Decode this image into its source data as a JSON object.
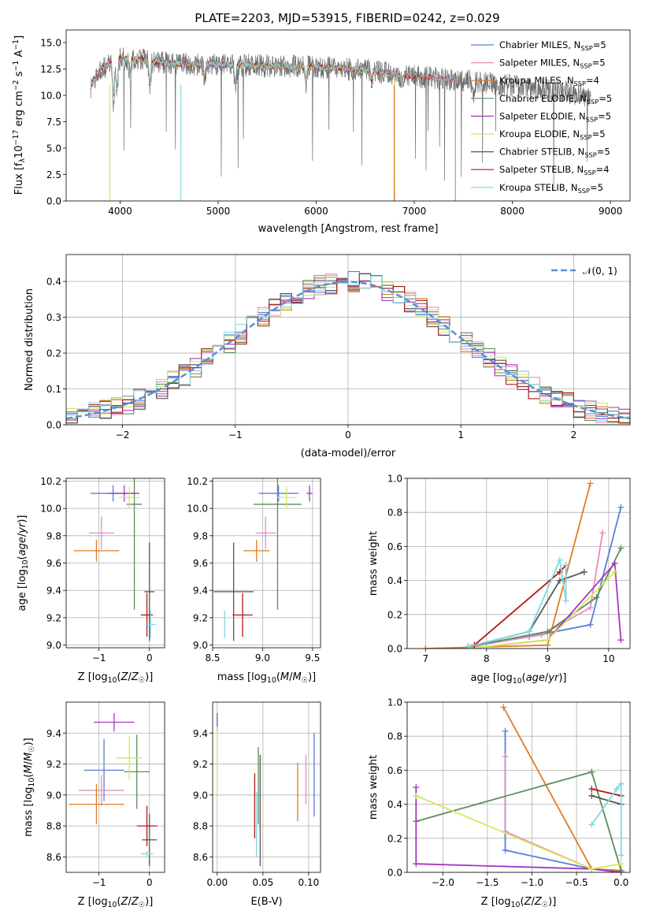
{
  "colors": {
    "chabrier_miles": "#5a7fd6",
    "salpeter_miles": "#e58cc0",
    "kroupa_miles": "#e07b21",
    "chabrier_elodie": "#5e8a5e",
    "salpeter_elodie": "#a438c0",
    "kroupa_elodie": "#d2e85a",
    "chabrier_stelib": "#555555",
    "salpeter_stelib": "#b01818",
    "kroupa_stelib": "#7fd8e0",
    "normal_curve": "#5a8fd6"
  },
  "chart_data": [
    {
      "id": "spectrum",
      "type": "line",
      "title": "PLATE=2203, MJD=53915, FIBERID=0242, z=0.029",
      "xlabel": "wavelength [Angstrom, rest frame]",
      "ylabel_parts": [
        "Flux [f",
        "λ",
        "10",
        "−17",
        " erg cm",
        "−2",
        " s",
        "−1",
        " A",
        "−1",
        "]"
      ],
      "xlim": [
        3450,
        9200
      ],
      "ylim": [
        0,
        16.2
      ],
      "xticks": [
        4000,
        5000,
        6000,
        7000,
        8000,
        9000
      ],
      "yticks": [
        0.0,
        2.5,
        5.0,
        7.5,
        10.0,
        12.5,
        15.0
      ],
      "grid": false,
      "legend_position": "top-right",
      "series": [
        {
          "name": "Chabrier MILES",
          "ssp": "5",
          "color_key": "chabrier_miles",
          "range": [
            3700,
            7420
          ]
        },
        {
          "name": "Salpeter MILES",
          "ssp": "5",
          "color_key": "salpeter_miles",
          "range": [
            3700,
            7420
          ]
        },
        {
          "name": "Kroupa MILES",
          "ssp": "4",
          "color_key": "kroupa_miles",
          "range": [
            3700,
            7420
          ]
        },
        {
          "name": "Chabrier ELODIE",
          "ssp": "5",
          "color_key": "chabrier_elodie",
          "range": [
            3900,
            6800
          ]
        },
        {
          "name": "Salpeter ELODIE",
          "ssp": "5",
          "color_key": "salpeter_elodie",
          "range": [
            3900,
            6800
          ]
        },
        {
          "name": "Kroupa ELODIE",
          "ssp": "5",
          "color_key": "kroupa_elodie",
          "range": [
            3900,
            6800
          ]
        },
        {
          "name": "Chabrier STELIB",
          "ssp": "5",
          "color_key": "chabrier_stelib",
          "range": [
            3700,
            8800
          ]
        },
        {
          "name": "Salpeter STELIB",
          "ssp": "4",
          "color_key": "salpeter_stelib",
          "range": [
            3700,
            7420
          ]
        },
        {
          "name": "Kroupa STELIB",
          "ssp": "5",
          "color_key": "kroupa_stelib",
          "range": [
            3700,
            7420
          ]
        }
      ],
      "continuum_points": [
        [
          3700,
          10.8
        ],
        [
          3800,
          12.5
        ],
        [
          4000,
          13.5
        ],
        [
          4200,
          13.4
        ],
        [
          4500,
          13.0
        ],
        [
          5000,
          12.9
        ],
        [
          5500,
          12.8
        ],
        [
          6000,
          12.7
        ],
        [
          6500,
          12.4
        ],
        [
          7000,
          11.8
        ],
        [
          7400,
          11.5
        ],
        [
          8000,
          10.9
        ],
        [
          8500,
          10.4
        ],
        [
          8800,
          9.9
        ]
      ],
      "absorption_features": [
        [
          3933,
          3.5
        ],
        [
          3968,
          3.0
        ],
        [
          4102,
          1.5
        ],
        [
          4304,
          2.2
        ],
        [
          4861,
          1.2
        ],
        [
          5175,
          1.8
        ],
        [
          5893,
          1.5
        ],
        [
          6563,
          1.0
        ],
        [
          6870,
          0.8
        ],
        [
          7600,
          1.0
        ]
      ]
    },
    {
      "id": "residual_histogram",
      "type": "line",
      "xlabel": "(data-model)/error",
      "ylabel": "Normed distribution",
      "xlim": [
        -2.5,
        2.5
      ],
      "ylim": [
        0,
        0.475
      ],
      "xticks": [
        -2,
        -1,
        0,
        1,
        2
      ],
      "yticks": [
        0.0,
        0.1,
        0.2,
        0.3,
        0.4
      ],
      "grid": true,
      "bin_width": 0.1,
      "curve": {
        "name": "N(0,1)",
        "mean": 0,
        "sigma": 1
      },
      "legend_position": "top-right"
    },
    {
      "id": "age_vs_metallicity",
      "type": "scatter",
      "xlabel": "Z [log10(Z/Z☉)]",
      "ylabel": "age [log10(age/yr)]",
      "xlim": [
        -1.65,
        0.3
      ],
      "ylim": [
        8.98,
        10.22
      ],
      "xticks": [
        -1,
        0
      ],
      "yticks": [
        9.0,
        9.2,
        9.4,
        9.6,
        9.8,
        10.0,
        10.2
      ],
      "grid": true,
      "points": [
        {
          "color_key": "chabrier_miles",
          "x": -0.72,
          "xerr": 0.45,
          "y": 10.11,
          "yerr": 0.06
        },
        {
          "color_key": "salpeter_miles",
          "x": -0.95,
          "xerr": 0.25,
          "y": 9.82,
          "yerr": 0.12
        },
        {
          "color_key": "kroupa_miles",
          "x": -1.05,
          "xerr": 0.45,
          "y": 9.69,
          "yerr": 0.08
        },
        {
          "color_key": "chabrier_elodie",
          "x": -0.3,
          "xerr": 0.15,
          "y": 10.03,
          "yerr": 0.77
        },
        {
          "color_key": "salpeter_elodie",
          "x": -0.5,
          "xerr": 0.3,
          "y": 10.11,
          "yerr": 0.06
        },
        {
          "color_key": "kroupa_elodie",
          "x": -0.4,
          "xerr": 0.2,
          "y": 10.08,
          "yerr": 0.08
        },
        {
          "color_key": "chabrier_stelib",
          "x": 0.0,
          "xerr": 0.1,
          "y": 9.39,
          "yerr": 0.36
        },
        {
          "color_key": "salpeter_stelib",
          "x": -0.05,
          "xerr": 0.12,
          "y": 9.22,
          "yerr": 0.16
        },
        {
          "color_key": "kroupa_stelib",
          "x": 0.02,
          "xerr": 0.1,
          "y": 9.15,
          "yerr": 0.1
        }
      ]
    },
    {
      "id": "age_vs_mass",
      "type": "scatter",
      "xlabel": "mass [log10(M/M☉)]",
      "ylabel": "",
      "xlim": [
        8.5,
        9.58
      ],
      "ylim": [
        8.98,
        10.22
      ],
      "xticks": [
        8.5,
        9.0,
        9.5
      ],
      "yticks": [
        9.0,
        9.2,
        9.4,
        9.6,
        9.8,
        10.0,
        10.2
      ],
      "grid": true,
      "points": [
        {
          "color_key": "chabrier_miles",
          "x": 9.16,
          "xerr": 0.2,
          "y": 10.11,
          "yerr": 0.06
        },
        {
          "color_key": "salpeter_miles",
          "x": 9.03,
          "xerr": 0.1,
          "y": 9.82,
          "yerr": 0.12
        },
        {
          "color_key": "kroupa_miles",
          "x": 8.94,
          "xerr": 0.13,
          "y": 9.69,
          "yerr": 0.08
        },
        {
          "color_key": "chabrier_elodie",
          "x": 9.15,
          "xerr": 0.24,
          "y": 10.03,
          "yerr": 0.77
        },
        {
          "color_key": "salpeter_elodie",
          "x": 9.47,
          "xerr": 0.03,
          "y": 10.11,
          "yerr": 0.06
        },
        {
          "color_key": "kroupa_elodie",
          "x": 9.24,
          "xerr": 0.1,
          "y": 10.08,
          "yerr": 0.08
        },
        {
          "color_key": "chabrier_stelib",
          "x": 8.71,
          "xerr": 0.2,
          "y": 9.39,
          "yerr": 0.36
        },
        {
          "color_key": "salpeter_stelib",
          "x": 8.8,
          "xerr": 0.1,
          "y": 9.22,
          "yerr": 0.16
        },
        {
          "color_key": "kroupa_stelib",
          "x": 8.62,
          "xerr": 0.0,
          "y": 9.15,
          "yerr": 0.1
        }
      ]
    },
    {
      "id": "mass_weight_vs_age",
      "type": "line",
      "xlabel": "age [log10(age/yr)]",
      "ylabel": "mass weight",
      "xlim": [
        6.7,
        10.35
      ],
      "ylim": [
        0,
        1.0
      ],
      "xticks": [
        7,
        8,
        9,
        10
      ],
      "yticks": [
        0.0,
        0.2,
        0.4,
        0.6,
        0.8,
        1.0
      ],
      "grid": true,
      "series": [
        {
          "color_key": "chabrier_miles",
          "points": [
            [
              7.7,
              0.01
            ],
            [
              8.7,
              0.07
            ],
            [
              9.7,
              0.14
            ],
            [
              10.2,
              0.83
            ]
          ]
        },
        {
          "color_key": "salpeter_miles",
          "points": [
            [
              7.7,
              0.01
            ],
            [
              8.9,
              0.08
            ],
            [
              9.7,
              0.24
            ],
            [
              9.9,
              0.68
            ]
          ]
        },
        {
          "color_key": "kroupa_miles",
          "points": [
            [
              7.0,
              0.0
            ],
            [
              9.0,
              0.02
            ],
            [
              9.7,
              0.97
            ]
          ]
        },
        {
          "color_key": "chabrier_elodie",
          "points": [
            [
              7.7,
              0.01
            ],
            [
              9.0,
              0.1
            ],
            [
              9.8,
              0.3
            ],
            [
              10.2,
              0.59
            ]
          ]
        },
        {
          "color_key": "salpeter_elodie",
          "points": [
            [
              7.7,
              0.0
            ],
            [
              9.0,
              0.05
            ],
            [
              10.1,
              0.5
            ],
            [
              10.2,
              0.05
            ]
          ]
        },
        {
          "color_key": "kroupa_elodie",
          "points": [
            [
              7.7,
              0.0
            ],
            [
              9.0,
              0.05
            ],
            [
              10.1,
              0.45
            ]
          ]
        },
        {
          "color_key": "chabrier_stelib",
          "points": [
            [
              7.7,
              0.01
            ],
            [
              8.7,
              0.1
            ],
            [
              9.2,
              0.4
            ],
            [
              9.6,
              0.45
            ]
          ]
        },
        {
          "color_key": "salpeter_stelib",
          "points": [
            [
              7.8,
              0.02
            ],
            [
              9.2,
              0.45
            ],
            [
              9.3,
              0.49
            ]
          ]
        },
        {
          "color_key": "kroupa_stelib",
          "points": [
            [
              7.7,
              0.01
            ],
            [
              8.7,
              0.1
            ],
            [
              9.2,
              0.52
            ],
            [
              9.3,
              0.28
            ],
            [
              9.3,
              0.49
            ]
          ]
        }
      ]
    },
    {
      "id": "mass_vs_metallicity",
      "type": "scatter",
      "xlabel": "Z [log10(Z/Z☉)]",
      "ylabel": "mass [log10(M/M☉)]",
      "xlim": [
        -1.65,
        0.3
      ],
      "ylim": [
        8.5,
        9.6
      ],
      "xticks": [
        -1,
        0
      ],
      "yticks": [
        8.6,
        8.8,
        9.0,
        9.2,
        9.4
      ],
      "grid": true,
      "points": [
        {
          "color_key": "chabrier_miles",
          "x": -0.9,
          "xerr": 0.4,
          "y": 9.16,
          "yerr": 0.2
        },
        {
          "color_key": "salpeter_miles",
          "x": -0.95,
          "xerr": 0.45,
          "y": 9.03,
          "yerr": 0.1
        },
        {
          "color_key": "kroupa_miles",
          "x": -1.05,
          "xerr": 0.55,
          "y": 8.94,
          "yerr": 0.13
        },
        {
          "color_key": "chabrier_elodie",
          "x": -0.25,
          "xerr": 0.25,
          "y": 9.15,
          "yerr": 0.24
        },
        {
          "color_key": "salpeter_elodie",
          "x": -0.7,
          "xerr": 0.4,
          "y": 9.47,
          "yerr": 0.06
        },
        {
          "color_key": "kroupa_elodie",
          "x": -0.4,
          "xerr": 0.25,
          "y": 9.24,
          "yerr": 0.14
        },
        {
          "color_key": "chabrier_stelib",
          "x": 0.0,
          "xerr": 0.15,
          "y": 8.71,
          "yerr": 0.17
        },
        {
          "color_key": "salpeter_stelib",
          "x": -0.05,
          "xerr": 0.2,
          "y": 8.8,
          "yerr": 0.13
        },
        {
          "color_key": "kroupa_stelib",
          "x": -0.05,
          "xerr": 0.12,
          "y": 8.62,
          "yerr": 0.02
        }
      ]
    },
    {
      "id": "mass_vs_ebv",
      "type": "scatter",
      "xlabel": "E(B-V)",
      "ylabel": "",
      "xlim": [
        -0.005,
        0.113
      ],
      "ylim": [
        8.5,
        9.6
      ],
      "xticks": [
        0.0,
        0.05,
        0.1
      ],
      "yticks": [
        8.6,
        8.8,
        9.0,
        9.2,
        9.4
      ],
      "grid": true,
      "points": [
        {
          "color_key": "chabrier_miles",
          "x": 0.106,
          "y": 9.13,
          "yerr": 0.27
        },
        {
          "color_key": "salpeter_miles",
          "x": 0.097,
          "y": 9.1,
          "yerr": 0.16
        },
        {
          "color_key": "kroupa_miles",
          "x": 0.088,
          "y": 9.02,
          "yerr": 0.19
        },
        {
          "color_key": "chabrier_elodie",
          "x": 0.045,
          "y": 9.06,
          "yerr": 0.25
        },
        {
          "color_key": "salpeter_elodie",
          "x": 0.0,
          "y": 9.47,
          "yerr": 0.06
        },
        {
          "color_key": "kroupa_elodie",
          "x": 0.0,
          "y": 9.22,
          "yerr": 0.22
        },
        {
          "color_key": "chabrier_stelib",
          "x": 0.047,
          "y": 8.9,
          "yerr": 0.36
        },
        {
          "color_key": "salpeter_stelib",
          "x": 0.041,
          "y": 8.93,
          "yerr": 0.21
        },
        {
          "color_key": "kroupa_stelib",
          "x": 0.043,
          "y": 8.81,
          "yerr": 0.21
        }
      ]
    },
    {
      "id": "mass_weight_vs_metallicity",
      "type": "line",
      "xlabel": "Z [log10(Z/Z☉)]",
      "ylabel": "mass weight",
      "xlim": [
        -2.4,
        0.1
      ],
      "ylim": [
        0,
        1.0
      ],
      "xticks": [
        -2.0,
        -1.5,
        -1.0,
        -0.5,
        0.0
      ],
      "yticks": [
        0.0,
        0.2,
        0.4,
        0.6,
        0.8,
        1.0
      ],
      "grid": true,
      "series": [
        {
          "color_key": "chabrier_miles",
          "points": [
            [
              -1.3,
              0.83
            ],
            [
              -1.3,
              0.13
            ],
            [
              -0.33,
              0.02
            ],
            [
              0.0,
              0.01
            ]
          ]
        },
        {
          "color_key": "salpeter_miles",
          "points": [
            [
              -1.3,
              0.68
            ],
            [
              -1.3,
              0.24
            ],
            [
              -0.33,
              0.02
            ],
            [
              0.0,
              0.01
            ]
          ]
        },
        {
          "color_key": "kroupa_miles",
          "points": [
            [
              -1.32,
              0.97
            ],
            [
              -0.33,
              0.02
            ],
            [
              0.0,
              0.01
            ]
          ]
        },
        {
          "color_key": "chabrier_elodie",
          "points": [
            [
              -2.3,
              0.3
            ],
            [
              -0.33,
              0.59
            ],
            [
              0.0,
              0.01
            ]
          ]
        },
        {
          "color_key": "salpeter_elodie",
          "points": [
            [
              -2.3,
              0.5
            ],
            [
              -2.3,
              0.05
            ],
            [
              -0.33,
              0.02
            ],
            [
              0.0,
              0.0
            ]
          ]
        },
        {
          "color_key": "kroupa_elodie",
          "points": [
            [
              -2.3,
              0.45
            ],
            [
              -0.33,
              0.02
            ],
            [
              0.0,
              0.05
            ]
          ]
        },
        {
          "color_key": "chabrier_stelib",
          "points": [
            [
              -0.33,
              0.45
            ],
            [
              0.0,
              0.4
            ]
          ]
        },
        {
          "color_key": "salpeter_stelib",
          "points": [
            [
              -0.33,
              0.49
            ],
            [
              0.0,
              0.45
            ]
          ]
        },
        {
          "color_key": "kroupa_stelib",
          "points": [
            [
              -0.33,
              0.28
            ],
            [
              -0.05,
              0.49
            ],
            [
              0.0,
              0.52
            ],
            [
              0.0,
              0.1
            ]
          ]
        }
      ]
    }
  ]
}
